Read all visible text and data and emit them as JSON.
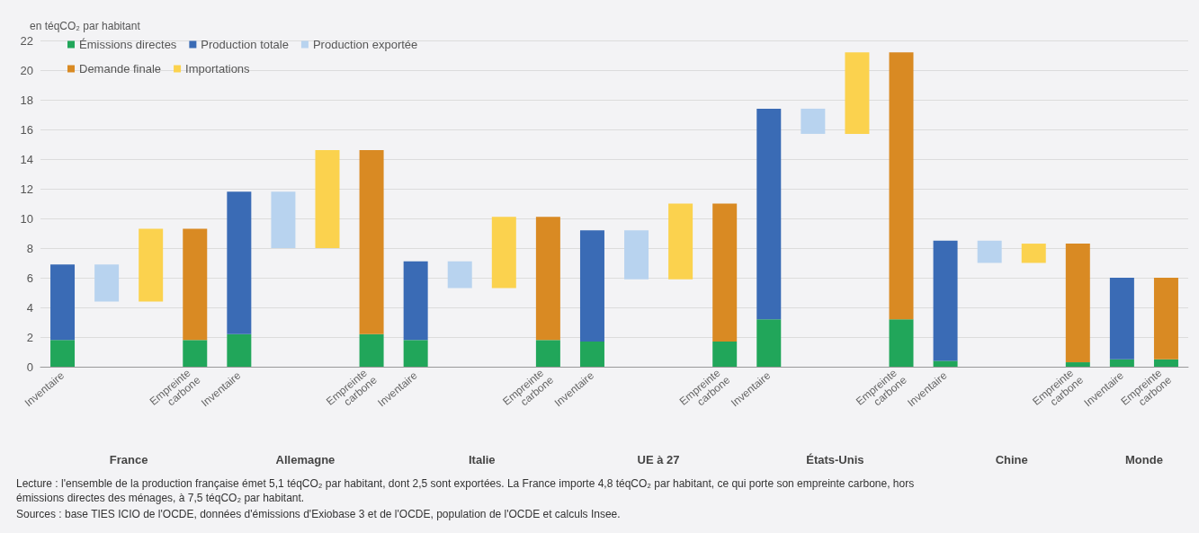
{
  "chart_data": {
    "type": "bar",
    "ylabel": "en téqCO₂ par habitant",
    "categories": [
      "Inventaire",
      null,
      null,
      "Empreinte carbone",
      "Inventaire",
      null,
      null,
      "Empreinte carbone",
      "Inventaire",
      null,
      null,
      "Empreinte carbone",
      "Inventaire",
      null,
      null,
      "Empreinte carbone",
      "Inventaire",
      null,
      null,
      "Empreinte carbone",
      "Inventaire",
      null,
      null,
      "Empreinte carbone",
      "Inventaire",
      "Empreinte carbone"
    ],
    "stacked": true,
    "series": [
      {
        "name": "Émissions directes",
        "color": "#21a65a",
        "values": [
          1.8,
          null,
          null,
          1.8,
          2.2,
          null,
          null,
          2.2,
          1.8,
          null,
          null,
          1.8,
          1.7,
          null,
          null,
          1.7,
          3.2,
          null,
          null,
          3.2,
          0.4,
          null,
          null,
          0.3,
          0.5,
          0.5
        ]
      },
      {
        "name": "Production totale",
        "color": "#3a6bb5",
        "values": [
          5.1,
          null,
          null,
          null,
          9.6,
          null,
          null,
          null,
          5.3,
          null,
          null,
          null,
          7.5,
          null,
          null,
          null,
          14.2,
          null,
          null,
          null,
          8.1,
          null,
          null,
          null,
          5.5,
          null
        ]
      },
      {
        "name": "Production exportée",
        "color": "#b8d3ef",
        "values": [
          null,
          2.5,
          null,
          null,
          null,
          3.8,
          null,
          null,
          null,
          1.8,
          null,
          null,
          null,
          3.3,
          null,
          null,
          null,
          1.7,
          null,
          null,
          null,
          1.5,
          null,
          null,
          null,
          null
        ],
        "base": [
          null,
          4.4,
          null,
          null,
          null,
          8.0,
          null,
          null,
          null,
          5.3,
          null,
          null,
          null,
          5.9,
          null,
          null,
          null,
          15.7,
          null,
          null,
          null,
          7.0,
          null,
          null,
          null,
          null
        ]
      },
      {
        "name": "Demande finale",
        "color": "#d98a23",
        "values": [
          null,
          null,
          null,
          7.5,
          null,
          null,
          null,
          12.4,
          null,
          null,
          null,
          8.3,
          null,
          null,
          null,
          9.3,
          null,
          null,
          null,
          18.0,
          null,
          null,
          null,
          8.0,
          null,
          5.5
        ]
      },
      {
        "name": "Importations",
        "color": "#fbd24e",
        "values": [
          null,
          null,
          4.9,
          null,
          null,
          null,
          6.6,
          null,
          null,
          null,
          4.8,
          null,
          null,
          null,
          5.1,
          null,
          null,
          null,
          5.5,
          null,
          null,
          null,
          1.3,
          null,
          null,
          null
        ],
        "base": [
          null,
          null,
          4.4,
          null,
          null,
          null,
          8.0,
          null,
          null,
          null,
          5.3,
          null,
          null,
          null,
          5.9,
          null,
          null,
          null,
          15.7,
          null,
          null,
          null,
          7.0,
          null,
          null,
          null
        ]
      }
    ],
    "ylim": [
      0,
      22
    ],
    "yticks": [
      0,
      2,
      4,
      6,
      8,
      10,
      12,
      14,
      16,
      18,
      20,
      22
    ],
    "grid": "y",
    "legend": "top left",
    "annotations": [
      "France",
      "Allemagne",
      "Italie",
      "UE à 27",
      "États-Unis",
      "Chine",
      "Monde",
      "Lecture : l'ensemble de la production française émet 5,1 téqCO₂ par habitant, dont 2,5 sont exportées. La France importe 4,8 téqCO₂ par habitant, ce qui porte son empreinte carbone, hors émissions directes des ménages, à 7,5 téqCO₂ par habitant.",
      "Sources : base TIES ICIO de l'OCDE, données d'émissions d'Exiobase 3 et de l'OCDE, population de l'OCDE et calculs Insee."
    ]
  }
}
